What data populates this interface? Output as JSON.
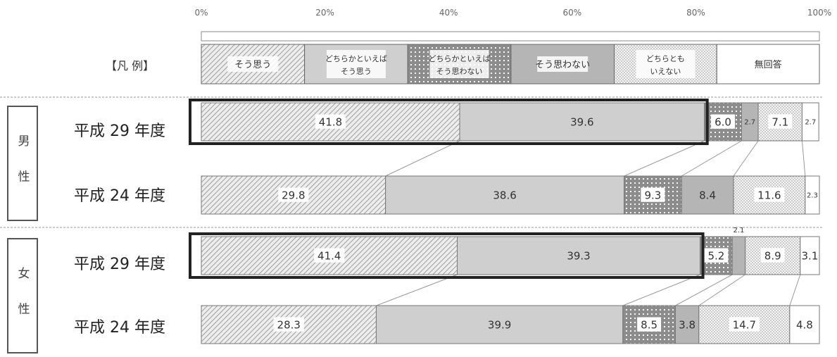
{
  "chart_data": {
    "type": "bar",
    "orientation": "horizontal-stacked-percent",
    "x_ticks": [
      "0%",
      "20%",
      "40%",
      "60%",
      "80%",
      "100%"
    ],
    "legend_title": "【凡 例】",
    "legend": [
      {
        "name": "そう思う",
        "lines": [
          "そう思う"
        ],
        "pattern": "hatch",
        "color": "#e9e9e9"
      },
      {
        "name": "どちらかといえばそう思う",
        "lines": [
          "どちらかといえば",
          "そう思う"
        ],
        "pattern": "solid",
        "color": "#cfcfcf"
      },
      {
        "name": "どちらかといえばそう思わない",
        "lines": [
          "どちらかといえば",
          "そう思わない"
        ],
        "pattern": "dots",
        "color": "#8e8e8e"
      },
      {
        "name": "そう思わない",
        "lines": [
          "そう思わない"
        ],
        "pattern": "solid",
        "color": "#b5b5b5"
      },
      {
        "name": "どちらともいえない",
        "lines": [
          "どちらとも",
          "いえない"
        ],
        "pattern": "stipple",
        "color": "#f3f3f3"
      },
      {
        "name": "無回答",
        "lines": [
          "無回答"
        ],
        "pattern": "none",
        "color": "#ffffff"
      }
    ],
    "groups": [
      {
        "name": "男性",
        "label": "男 性"
      },
      {
        "name": "女性",
        "label": "女 性"
      }
    ],
    "rows": [
      {
        "group": "男性",
        "label": "平成 29 年度",
        "highlight": true,
        "values": [
          41.8,
          39.6,
          6.0,
          2.7,
          7.1,
          2.7
        ],
        "value_labels": [
          "41.8",
          "39.6",
          "6.0",
          "2.7",
          "7.1",
          "2.7"
        ]
      },
      {
        "group": "男性",
        "label": "平成 24 年度",
        "highlight": false,
        "values": [
          29.8,
          38.6,
          9.3,
          8.4,
          11.6,
          2.3
        ],
        "value_labels": [
          "29.8",
          "38.6",
          "9.3",
          "8.4",
          "11.6",
          "2.3"
        ]
      },
      {
        "group": "女性",
        "label": "平成 29 年度",
        "highlight": true,
        "values": [
          41.4,
          39.3,
          5.2,
          2.1,
          8.9,
          3.1
        ],
        "value_labels": [
          "41.4",
          "39.3",
          "5.2",
          "2.1",
          "8.9",
          "3.1"
        ]
      },
      {
        "group": "女性",
        "label": "平成 24 年度",
        "highlight": false,
        "values": [
          28.3,
          39.9,
          8.5,
          3.8,
          14.7,
          4.8
        ],
        "value_labels": [
          "28.3",
          "39.9",
          "8.5",
          "3.8",
          "14.7",
          "4.8"
        ]
      }
    ],
    "xlim": [
      0,
      100
    ],
    "grid": false
  }
}
